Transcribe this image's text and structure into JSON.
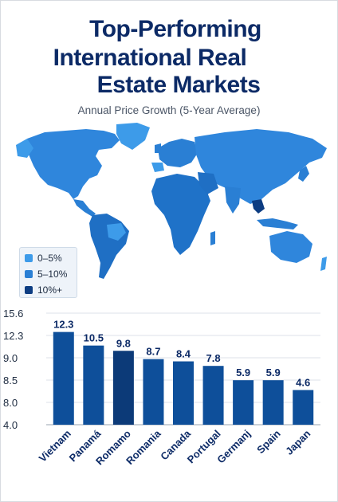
{
  "title_lines": [
    "Top-Performing",
    "International Real",
    "Estate Markets"
  ],
  "subtitle": "Annual Price Growth (5-Year Average)",
  "legend": [
    {
      "label": "0–5%",
      "color": "#3d9be9"
    },
    {
      "label": "5–10%",
      "color": "#2a7fd4"
    },
    {
      "label": "10%+",
      "color": "#0d3d82"
    }
  ],
  "chart_data": {
    "type": "bar",
    "categories": [
      "Vietnam",
      "Panamá",
      "Romamo",
      "Romania",
      "Canada",
      "Portugal",
      "Germanj",
      "Spain",
      "Japan"
    ],
    "values": [
      12.3,
      10.5,
      9.8,
      8.7,
      8.4,
      7.8,
      5.9,
      5.9,
      4.6
    ],
    "value_labels": [
      "12.3",
      "10.5",
      "9.8",
      "8.7",
      "8.4",
      "7.8",
      "5.9",
      "5.9",
      "4.6"
    ],
    "y_tick_labels": [
      "15.6",
      "12.3",
      "9.0",
      "8.5",
      "8.0",
      "4.0"
    ],
    "bar_colors": [
      "#0e4f9a",
      "#0e4f9a",
      "#0c3a78",
      "#0e4f9a",
      "#0e4f9a",
      "#0e4f9a",
      "#0e4f9a",
      "#0e4f9a",
      "#0e4f9a"
    ],
    "xlabel": "",
    "ylabel": ""
  }
}
